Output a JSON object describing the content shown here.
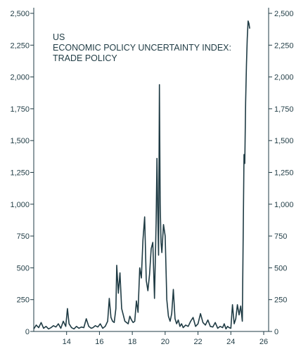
{
  "chart_data": {
    "type": "line",
    "title_lines": [
      "US",
      "ECONOMIC POLICY UNCERTAINTY INDEX:",
      "TRADE POLICY"
    ],
    "xlim": [
      12,
      26.3
    ],
    "ylim": [
      0,
      2500
    ],
    "x_ticks": [
      14,
      16,
      18,
      20,
      22,
      24,
      26
    ],
    "y_ticks": [
      0,
      250,
      500,
      750,
      1000,
      1250,
      1500,
      1750,
      2000,
      2250,
      2500
    ],
    "y_tick_labels": [
      "0",
      "250",
      "500",
      "750",
      "1,000",
      "1,250",
      "1,500",
      "1,750",
      "2,000",
      "2,250",
      "2,500"
    ],
    "grid": false,
    "colors": {
      "line": "#1f3b44",
      "text": "#1f3b44"
    },
    "series": [
      {
        "x": [
          12.0,
          12.15,
          12.3,
          12.45,
          12.6,
          12.75,
          12.9,
          13.05,
          13.2,
          13.35,
          13.5,
          13.65,
          13.8,
          13.95,
          14.05,
          14.15,
          14.3,
          14.45,
          14.6,
          14.75,
          14.9,
          15.05,
          15.2,
          15.35,
          15.5,
          15.6,
          15.75,
          15.9,
          16.05,
          16.2,
          16.35,
          16.5,
          16.6,
          16.7,
          16.8,
          16.9,
          17.0,
          17.05,
          17.15,
          17.25,
          17.35,
          17.45,
          17.55,
          17.65,
          17.75,
          17.85,
          17.95,
          18.05,
          18.15,
          18.25,
          18.35,
          18.45,
          18.55,
          18.65,
          18.75,
          18.85,
          18.95,
          19.05,
          19.15,
          19.25,
          19.35,
          19.45,
          19.5,
          19.55,
          19.6,
          19.65,
          19.7,
          19.75,
          19.8,
          19.9,
          20.0,
          20.1,
          20.2,
          20.3,
          20.4,
          20.5,
          20.6,
          20.7,
          20.8,
          20.9,
          21.0,
          21.1,
          21.25,
          21.4,
          21.55,
          21.7,
          21.85,
          22.0,
          22.15,
          22.3,
          22.45,
          22.6,
          22.75,
          22.9,
          23.05,
          23.2,
          23.35,
          23.5,
          23.6,
          23.7,
          23.8,
          23.9,
          24.0,
          24.1,
          24.2,
          24.3,
          24.4,
          24.5,
          24.6,
          24.7,
          24.8,
          24.85,
          24.9,
          24.95,
          25.0,
          25.05,
          25.1,
          25.15
        ],
        "values": [
          20,
          50,
          30,
          70,
          25,
          40,
          20,
          30,
          45,
          35,
          60,
          25,
          80,
          40,
          180,
          60,
          30,
          20,
          40,
          25,
          35,
          30,
          100,
          40,
          25,
          30,
          45,
          35,
          60,
          25,
          40,
          80,
          260,
          110,
          80,
          70,
          180,
          520,
          300,
          460,
          180,
          130,
          80,
          70,
          60,
          120,
          90,
          70,
          80,
          240,
          150,
          500,
          420,
          720,
          900,
          400,
          320,
          450,
          650,
          700,
          260,
          850,
          1360,
          950,
          600,
          1940,
          1000,
          700,
          620,
          840,
          750,
          250,
          120,
          80,
          140,
          330,
          100,
          60,
          90,
          40,
          60,
          30,
          50,
          40,
          80,
          110,
          40,
          60,
          140,
          70,
          50,
          90,
          40,
          35,
          70,
          25,
          40,
          30,
          60,
          20,
          40,
          30,
          25,
          210,
          60,
          100,
          210,
          130,
          200,
          80,
          1390,
          1320,
          1800,
          2100,
          2300,
          2440,
          2420,
          2380
        ]
      }
    ]
  }
}
